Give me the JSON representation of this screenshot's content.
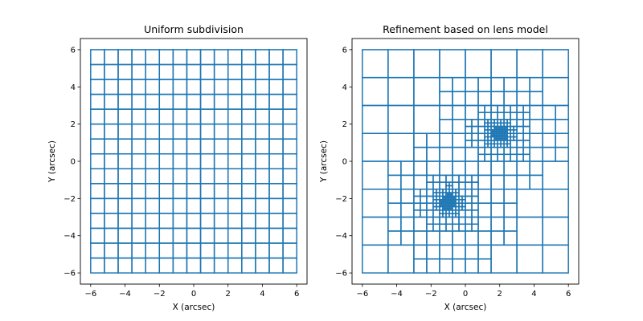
{
  "colors": {
    "grid": "#1f77b4",
    "frame": "#000000",
    "background": "#ffffff"
  },
  "chart_data": [
    {
      "type": "grid",
      "title": "Uniform subdivision",
      "xlabel": "X (arcsec)",
      "ylabel": "Y (arcsec)",
      "xlim": [
        -6.6,
        6.6
      ],
      "ylim": [
        -6.6,
        6.6
      ],
      "xticks": [
        -6,
        -4,
        -2,
        0,
        2,
        4,
        6
      ],
      "yticks": [
        -6,
        -4,
        -2,
        0,
        2,
        4,
        6
      ],
      "xtick_labels": [
        "−6",
        "−4",
        "−2",
        "0",
        "2",
        "4",
        "6"
      ],
      "ytick_labels": [
        "−6",
        "−4",
        "−2",
        "0",
        "2",
        "4",
        "6"
      ],
      "extent": [
        -6,
        6
      ],
      "subdivision": {
        "mode": "uniform",
        "cells_per_side": 15
      }
    },
    {
      "type": "grid",
      "title": "Refinement based on lens model",
      "xlabel": "X (arcsec)",
      "ylabel": "Y (arcsec)",
      "xlim": [
        -6.6,
        6.6
      ],
      "ylim": [
        -6.6,
        6.6
      ],
      "xticks": [
        -6,
        -4,
        -2,
        0,
        2,
        4,
        6
      ],
      "yticks": [
        -6,
        -4,
        -2,
        0,
        2,
        4,
        6
      ],
      "xtick_labels": [
        "−6",
        "−4",
        "−2",
        "0",
        "2",
        "4",
        "6"
      ],
      "ytick_labels": [
        "−6",
        "−4",
        "−2",
        "0",
        "2",
        "4",
        "6"
      ],
      "extent": [
        -6,
        6
      ],
      "subdivision": {
        "mode": "quadtree",
        "base_cells_per_side": 8,
        "max_depth": 4,
        "refinement_centers": [
          {
            "x": 2.0,
            "y": 1.5,
            "spread": 1.8
          },
          {
            "x": -1.0,
            "y": -2.2,
            "spread": 1.8
          }
        ]
      }
    }
  ]
}
